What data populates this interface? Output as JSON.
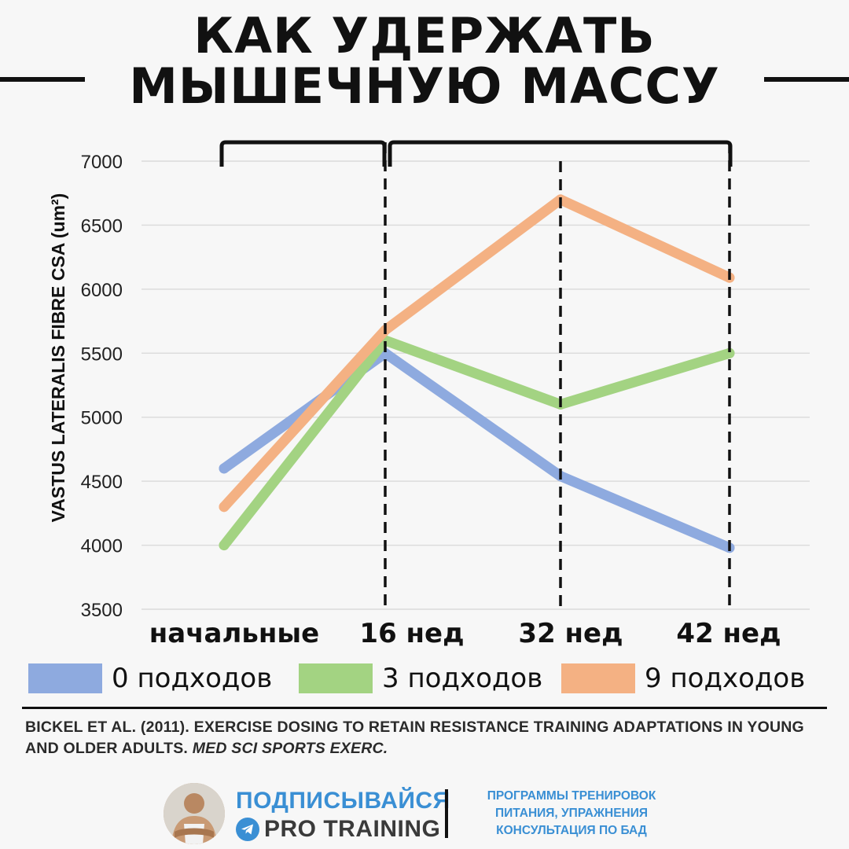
{
  "title": {
    "line1": "КАК УДЕРЖАТЬ",
    "line2": "МЫШЕЧНУЮ МАССУ"
  },
  "chart_data": {
    "type": "line",
    "ylabel": "VASTUS LATERALIS FIBRE CSA (um²)",
    "xlabel": "",
    "categories": [
      "начальные",
      "16 нед",
      "32 нед",
      "42 нед"
    ],
    "yticks": [
      3500,
      4000,
      4500,
      5000,
      5500,
      6000,
      6500,
      7000
    ],
    "ylim": [
      3500,
      7000
    ],
    "grid": true,
    "series": [
      {
        "name": "0 подходов",
        "color": "#8eaadf",
        "values": [
          4600,
          5500,
          4540,
          3980
        ]
      },
      {
        "name": "3 подходов",
        "color": "#a3d382",
        "values": [
          4000,
          5600,
          5100,
          5500
        ]
      },
      {
        "name": "9 подходов",
        "color": "#f4b183",
        "values": [
          4300,
          5680,
          6700,
          6090
        ]
      }
    ]
  },
  "citation": {
    "authors": "BICKEL ET AL. (2011). EXERCISE DOSING TO RETAIN RESISTANCE TRAINING ADAPTATIONS IN YOUNG AND OLDER ADULTS. ",
    "journal": "MED SCI SPORTS EXERC."
  },
  "footer": {
    "subscribe": "ПОДПИСЫВАЙСЯ",
    "channel": "PRO TRAINING",
    "promo_line1": "ПРОГРАММЫ ТРЕНИРОВОК",
    "promo_line2": "ПИТАНИЯ, УПРАЖНЕНИЯ",
    "promo_line3": "КОНСУЛЬТАЦИЯ ПО БАД",
    "accent_color": "#3a8fd4"
  }
}
